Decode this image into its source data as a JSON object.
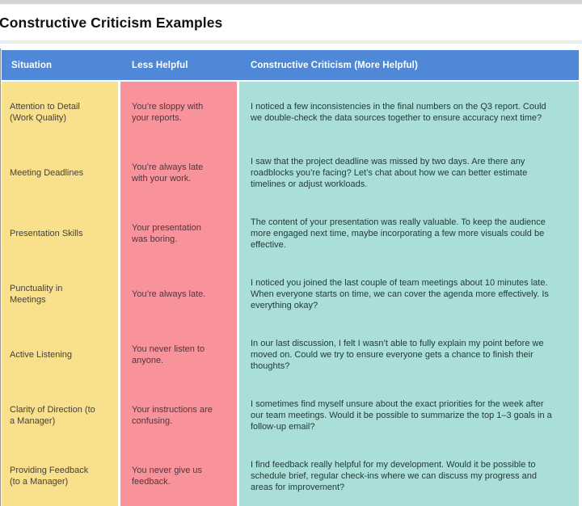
{
  "page": {
    "title": "Constructive Criticism Examples"
  },
  "table": {
    "columns": [
      {
        "key": "situation",
        "label": "Situation"
      },
      {
        "key": "less_helpful",
        "label": "Less Helpful"
      },
      {
        "key": "constructive",
        "label": "Constructive Criticism (More Helpful)"
      }
    ],
    "rows": [
      {
        "situation": "Attention to Detail (Work Quality)",
        "less_helpful": "You’re sloppy with your reports.",
        "constructive": "I noticed a few inconsistencies in the final numbers on the Q3 report. Could we double-check the data sources together to ensure accuracy next time?"
      },
      {
        "situation": "Meeting Deadlines",
        "less_helpful": "You’re always late with your work.",
        "constructive": "I saw that the project deadline was missed by two days. Are there any roadblocks you’re facing? Let’s chat about how we can better estimate timelines or adjust workloads."
      },
      {
        "situation": "Presentation Skills",
        "less_helpful": "Your presentation was boring.",
        "constructive": "The content of your presentation was really valuable. To keep the audience more engaged next time, maybe incorporating a few more visuals could be effective."
      },
      {
        "situation": "Punctuality in Meetings",
        "less_helpful": "You’re always late.",
        "constructive": "I noticed you joined the last couple of team meetings about 10 minutes late. When everyone starts on time, we can cover the agenda more effectively. Is everything okay?"
      },
      {
        "situation": "Active Listening",
        "less_helpful": "You never listen to anyone.",
        "constructive": "In our last discussion, I felt I wasn’t able to fully explain my point before we moved on. Could we try to ensure everyone gets a chance to finish their thoughts?"
      },
      {
        "situation": "Clarity of Direction (to a Manager)",
        "less_helpful": "Your instructions are confusing.",
        "constructive": "I sometimes find myself unsure about the exact priorities for the week after our team meetings. Would it be possible to summarize the top 1–3 goals in a follow-up email?"
      },
      {
        "situation": "Providing Feedback (to a Manager)",
        "less_helpful": "You never give us feedback.",
        "constructive": "I find feedback really helpful for my development. Would it be possible to schedule brief, regular check-ins where we can discuss my progress and areas for improvement?"
      }
    ]
  },
  "colors": {
    "header_bg": "#5088d8",
    "header_text": "#ffffff",
    "situation_bg": "#f9e08c",
    "situation_text": "#45413b",
    "less_helpful_bg": "#f9939b",
    "less_helpful_text": "#53343c",
    "constructive_bg": "#aadfd9",
    "constructive_text": "#233a38",
    "title_text": "#121212"
  }
}
